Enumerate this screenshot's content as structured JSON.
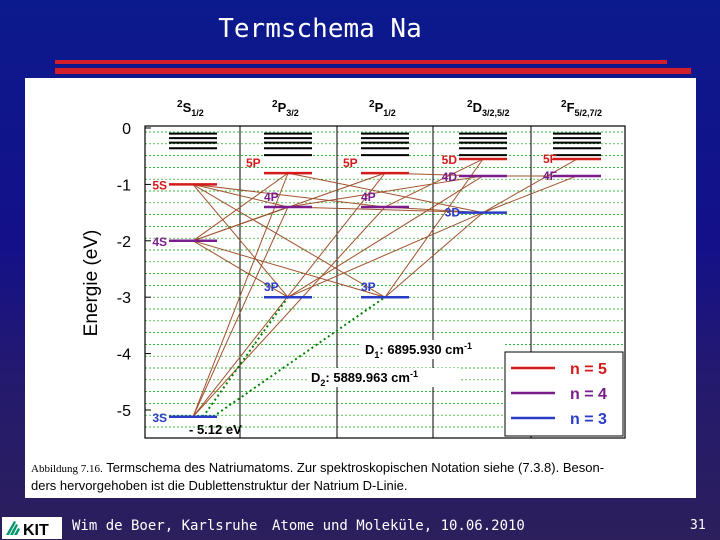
{
  "slide": {
    "title": "Termschema Na",
    "colors": {
      "accent_red": "#d21f2a",
      "level_red": "#d41a1a",
      "level_purple": "#7a1c8c",
      "level_blue": "#2a3bc8",
      "grid_green": "#00a000",
      "transition_brown": "#a0522d"
    }
  },
  "figure": {
    "ylabel": "Energie (eV)",
    "y_ticks": [
      "0",
      "-1",
      "-2",
      "-3",
      "-4",
      "-5"
    ],
    "ylim": [
      -5.6,
      0.3
    ],
    "columns": [
      {
        "main": "2",
        "sym": "S",
        "sub": "1/2"
      },
      {
        "main": "2",
        "sym": "P",
        "sub": "3/2"
      },
      {
        "main": "2",
        "sym": "P",
        "sub": "1/2"
      },
      {
        "main": "2",
        "sym": "D",
        "sub": "3/2,5/2"
      },
      {
        "main": "2",
        "sym": "F",
        "sub": "5/2,7/2"
      }
    ],
    "levels": [
      {
        "label": "3S",
        "col": 0,
        "energy": -5.12,
        "n": 3
      },
      {
        "label": "4S",
        "col": 0,
        "energy": -2.0,
        "n": 4
      },
      {
        "label": "5S",
        "col": 0,
        "energy": -1.0,
        "n": 5
      },
      {
        "label": "3P",
        "col": 1,
        "energy": -3.0,
        "n": 3
      },
      {
        "label": "4P",
        "col": 1,
        "energy": -1.4,
        "n": 4
      },
      {
        "label": "5P",
        "col": 1,
        "energy": -0.8,
        "n": 5
      },
      {
        "label": "3P",
        "col": 2,
        "energy": -3.0,
        "n": 3
      },
      {
        "label": "4P",
        "col": 2,
        "energy": -1.4,
        "n": 4
      },
      {
        "label": "5P",
        "col": 2,
        "energy": -0.8,
        "n": 5
      },
      {
        "label": "3D",
        "col": 3,
        "energy": -1.5,
        "n": 3
      },
      {
        "label": "4D",
        "col": 3,
        "energy": -0.85,
        "n": 4
      },
      {
        "label": "5D",
        "col": 3,
        "energy": -0.55,
        "n": 5
      },
      {
        "label": "4F",
        "col": 4,
        "energy": -0.85,
        "n": 4
      },
      {
        "label": "5F",
        "col": 4,
        "energy": -0.55,
        "n": 5
      }
    ],
    "ground_energy_label": "- 5.12 eV",
    "d_lines": [
      {
        "name": "D",
        "sub": "1",
        "value": ": 6895.930 cm",
        "unit_exp": "-1"
      },
      {
        "name": "D",
        "sub": "2",
        "value": ": 5889.963 cm",
        "unit_exp": "-1"
      }
    ],
    "legend": [
      {
        "label": "n = 5",
        "color": "#d41a1a"
      },
      {
        "label": "n = 4",
        "color": "#7a1c8c"
      },
      {
        "label": "n = 3",
        "color": "#2a3bc8"
      }
    ],
    "caption": {
      "lead": "Abbildung 7.16.",
      "line1_a": " Termschema des Natriumatoms. Zur spektroskopischen Notation siehe (",
      "ref": "7.3.8",
      "line1_b": "). Beson-",
      "line2": "ders hervorgehoben ist die Dublettenstruktur der Natrium D-Linie."
    }
  },
  "footer": {
    "logo_text": "KIT",
    "author": "Wim de Boer, Karlsruhe",
    "course": "Atome und Moleküle, 10.06.2010",
    "page": "31"
  }
}
